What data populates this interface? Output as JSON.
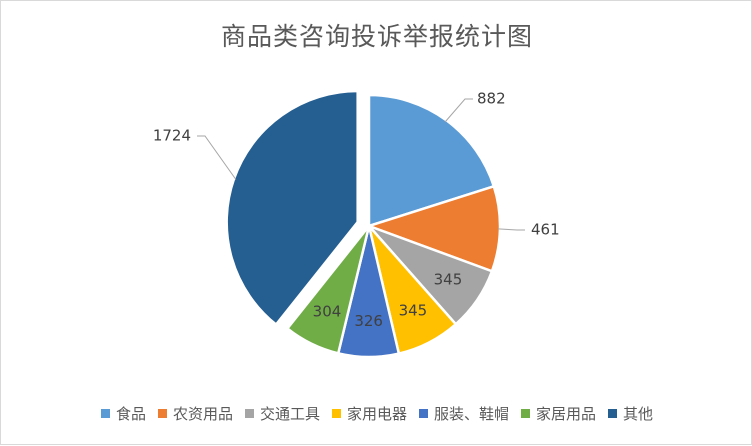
{
  "chart_data": {
    "type": "pie",
    "title": "商品类咨询投诉举报统计图",
    "categories": [
      "食品",
      "农资用品",
      "交通工具",
      "家用电器",
      "服装、鞋帽",
      "家居用品",
      "其他"
    ],
    "values": [
      882,
      461,
      345,
      345,
      326,
      304,
      1724
    ],
    "colors": [
      "#5b9bd5",
      "#ed7d31",
      "#a5a5a5",
      "#ffc000",
      "#4472c4",
      "#70ad47",
      "#255e91"
    ],
    "exploded": [
      false,
      false,
      false,
      false,
      false,
      false,
      true
    ],
    "legend": "bottom"
  }
}
